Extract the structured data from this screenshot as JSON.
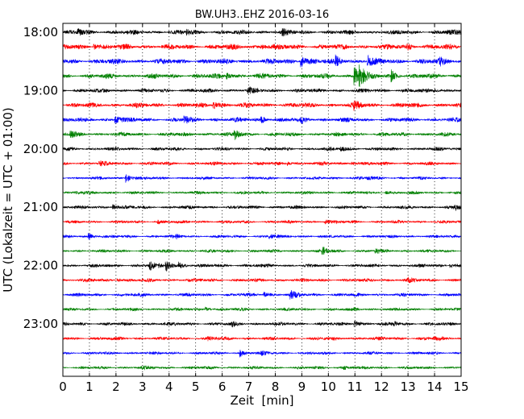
{
  "chart_data": {
    "type": "line",
    "title": "BW.UH3..EHZ 2016-03-16",
    "xlabel": "Zeit  [min]",
    "ylabel": "UTC (Lokalzeit = UTC + 01:00)",
    "xlim": [
      0,
      15
    ],
    "x_ticks": [
      "0",
      "1",
      "2",
      "3",
      "4",
      "5",
      "6",
      "7",
      "8",
      "9",
      "10",
      "11",
      "12",
      "13",
      "14",
      "15"
    ],
    "y_ticks": [
      "18:00",
      "19:00",
      "20:00",
      "21:00",
      "22:00",
      "23:00"
    ],
    "grid": "vertical dotted",
    "trace_interval_min": 15,
    "colors": [
      "#000000",
      "#ff0000",
      "#0000ff",
      "#008000"
    ],
    "series": [
      {
        "start": "18:00",
        "color": "#000000",
        "amplitude": 0.45,
        "events": [
          [
            0.6,
            0.5
          ],
          [
            4.7,
            0.4
          ],
          [
            8.3,
            0.4
          ],
          [
            14.5,
            0.3
          ]
        ]
      },
      {
        "start": "18:15",
        "color": "#ff0000",
        "amplitude": 0.55,
        "events": [
          [
            1.2,
            0.4
          ],
          [
            7.5,
            0.3
          ],
          [
            13.0,
            0.3
          ]
        ]
      },
      {
        "start": "18:30",
        "color": "#0000ff",
        "amplitude": 0.55,
        "events": [
          [
            9.0,
            0.9
          ],
          [
            10.3,
            0.6
          ],
          [
            11.5,
            0.8
          ],
          [
            14.2,
            0.4
          ]
        ]
      },
      {
        "start": "18:45",
        "color": "#008000",
        "amplitude": 0.5,
        "events": [
          [
            6.2,
            0.5
          ],
          [
            11.0,
            1.4
          ],
          [
            11.2,
            1.6
          ],
          [
            12.4,
            0.8
          ]
        ]
      },
      {
        "start": "19:00",
        "color": "#000000",
        "amplitude": 0.4,
        "events": [
          [
            7.0,
            0.5
          ],
          [
            14.0,
            0.3
          ]
        ]
      },
      {
        "start": "19:15",
        "color": "#ff0000",
        "amplitude": 0.5,
        "events": [
          [
            5.7,
            0.6
          ],
          [
            11.0,
            0.5
          ]
        ]
      },
      {
        "start": "19:30",
        "color": "#0000ff",
        "amplitude": 0.45,
        "events": [
          [
            2.0,
            0.6
          ],
          [
            4.6,
            0.5
          ],
          [
            7.5,
            0.5
          ],
          [
            9.0,
            0.4
          ]
        ]
      },
      {
        "start": "19:45",
        "color": "#008000",
        "amplitude": 0.4,
        "events": [
          [
            0.3,
            0.5
          ],
          [
            6.5,
            0.8
          ]
        ]
      },
      {
        "start": "20:00",
        "color": "#000000",
        "amplitude": 0.35,
        "events": [
          [
            10.5,
            0.5
          ]
        ]
      },
      {
        "start": "20:15",
        "color": "#ff0000",
        "amplitude": 0.35,
        "events": [
          [
            1.4,
            0.4
          ],
          [
            8.5,
            0.4
          ],
          [
            10.9,
            0.4
          ]
        ]
      },
      {
        "start": "20:30",
        "color": "#0000ff",
        "amplitude": 0.3,
        "events": [
          [
            2.4,
            1.2
          ],
          [
            11.5,
            0.4
          ]
        ]
      },
      {
        "start": "20:45",
        "color": "#008000",
        "amplitude": 0.3,
        "events": [
          [
            0.5,
            0.3
          ],
          [
            12.2,
            0.3
          ]
        ]
      },
      {
        "start": "21:00",
        "color": "#000000",
        "amplitude": 0.35,
        "events": [
          [
            1.9,
            0.6
          ],
          [
            14.8,
            0.5
          ]
        ]
      },
      {
        "start": "21:15",
        "color": "#ff0000",
        "amplitude": 0.3,
        "events": [
          [
            3.6,
            0.4
          ],
          [
            9.9,
            0.5
          ]
        ]
      },
      {
        "start": "21:30",
        "color": "#0000ff",
        "amplitude": 0.3,
        "events": [
          [
            1.0,
            0.7
          ],
          [
            4.3,
            0.4
          ],
          [
            7.8,
            0.6
          ]
        ]
      },
      {
        "start": "21:45",
        "color": "#008000",
        "amplitude": 0.3,
        "events": [
          [
            9.8,
            1.0
          ],
          [
            11.8,
            0.4
          ]
        ]
      },
      {
        "start": "22:00",
        "color": "#000000",
        "amplitude": 0.35,
        "events": [
          [
            3.3,
            1.0
          ],
          [
            3.9,
            1.2
          ],
          [
            4.4,
            0.7
          ],
          [
            14.6,
            0.5
          ]
        ]
      },
      {
        "start": "22:15",
        "color": "#ff0000",
        "amplitude": 0.35,
        "events": [
          [
            2.1,
            0.3
          ],
          [
            13.0,
            0.4
          ]
        ]
      },
      {
        "start": "22:30",
        "color": "#0000ff",
        "amplitude": 0.35,
        "events": [
          [
            7.6,
            0.6
          ],
          [
            8.6,
            0.9
          ]
        ]
      },
      {
        "start": "22:45",
        "color": "#008000",
        "amplitude": 0.3,
        "events": [
          [
            5.4,
            0.5
          ],
          [
            11.0,
            0.3
          ]
        ]
      },
      {
        "start": "23:00",
        "color": "#000000",
        "amplitude": 0.35,
        "events": [
          [
            6.4,
            0.4
          ],
          [
            11.0,
            0.8
          ],
          [
            12.5,
            0.4
          ]
        ]
      },
      {
        "start": "23:15",
        "color": "#ff0000",
        "amplitude": 0.35,
        "events": [
          [
            5.5,
            0.3
          ],
          [
            14.0,
            0.3
          ]
        ]
      },
      {
        "start": "23:30",
        "color": "#0000ff",
        "amplitude": 0.3,
        "events": [
          [
            6.7,
            1.0
          ],
          [
            7.5,
            0.4
          ]
        ]
      },
      {
        "start": "23:45",
        "color": "#008000",
        "amplitude": 0.3,
        "events": [
          [
            3.0,
            0.3
          ],
          [
            10.6,
            0.4
          ]
        ]
      }
    ]
  }
}
